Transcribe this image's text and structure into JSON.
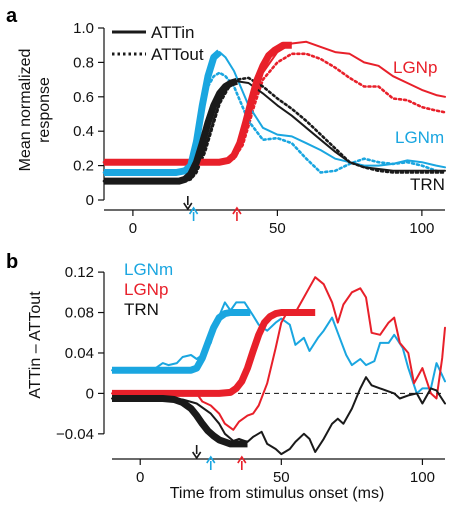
{
  "colors": {
    "LGNp": "#e8202a",
    "LGNm": "#1aa6e0",
    "TRN": "#1a1a1a"
  },
  "chart_data": [
    {
      "panel": "a",
      "type": "line",
      "xlabel": "",
      "ylabel": "Mean normalized response",
      "xlim": [
        -10,
        108
      ],
      "ylim": [
        0,
        1.0
      ],
      "xticks": [
        0,
        50,
        100
      ],
      "yticks": [
        0,
        0.2,
        0.4,
        0.6,
        0.8,
        1.0
      ],
      "ytick_labels": [
        "0",
        "0.2",
        "0.4",
        "0.6",
        "0.8",
        "1.0"
      ],
      "legend": {
        "position": "top-left",
        "entries": [
          "ATTin",
          "ATTout"
        ]
      },
      "series": [
        {
          "name": "LGNp",
          "condition": "ATTin",
          "color": "LGNp",
          "x": [
            -10,
            0,
            10,
            20,
            30,
            35,
            38,
            40,
            42,
            45,
            50,
            55,
            60,
            65,
            70,
            75,
            80,
            85,
            90,
            95,
            100,
            105,
            108
          ],
          "y": [
            0.22,
            0.22,
            0.22,
            0.22,
            0.22,
            0.24,
            0.33,
            0.45,
            0.58,
            0.74,
            0.86,
            0.91,
            0.92,
            0.89,
            0.86,
            0.85,
            0.8,
            0.78,
            0.72,
            0.68,
            0.64,
            0.61,
            0.6
          ]
        },
        {
          "name": "LGNp",
          "condition": "ATTout",
          "color": "LGNp",
          "x": [
            -10,
            0,
            10,
            20,
            30,
            35,
            38,
            40,
            42,
            45,
            50,
            55,
            60,
            65,
            70,
            75,
            80,
            85,
            90,
            95,
            100,
            105,
            108
          ],
          "y": [
            0.22,
            0.22,
            0.22,
            0.22,
            0.22,
            0.24,
            0.32,
            0.43,
            0.55,
            0.7,
            0.8,
            0.85,
            0.85,
            0.82,
            0.77,
            0.71,
            0.66,
            0.66,
            0.59,
            0.58,
            0.54,
            0.52,
            0.51
          ]
        },
        {
          "name": "LGNm",
          "condition": "ATTin",
          "color": "LGNm",
          "x": [
            -10,
            0,
            10,
            15,
            18,
            20,
            22,
            24,
            26,
            28,
            30,
            32,
            35,
            40,
            45,
            50,
            55,
            60,
            65,
            70,
            75,
            80,
            85,
            90,
            95,
            100,
            105,
            108
          ],
          "y": [
            0.16,
            0.16,
            0.16,
            0.16,
            0.17,
            0.22,
            0.4,
            0.6,
            0.74,
            0.82,
            0.86,
            0.83,
            0.75,
            0.55,
            0.42,
            0.38,
            0.37,
            0.33,
            0.29,
            0.24,
            0.22,
            0.2,
            0.2,
            0.21,
            0.23,
            0.22,
            0.2,
            0.19
          ]
        },
        {
          "name": "LGNm",
          "condition": "ATTout",
          "color": "LGNm",
          "x": [
            -10,
            0,
            10,
            15,
            18,
            20,
            22,
            24,
            26,
            28,
            30,
            32,
            35,
            40,
            45,
            50,
            55,
            60,
            65,
            70,
            75,
            80,
            85,
            90,
            95,
            100,
            105,
            108
          ],
          "y": [
            0.16,
            0.16,
            0.16,
            0.16,
            0.17,
            0.21,
            0.36,
            0.54,
            0.66,
            0.72,
            0.74,
            0.72,
            0.66,
            0.46,
            0.35,
            0.36,
            0.33,
            0.24,
            0.16,
            0.17,
            0.21,
            0.24,
            0.22,
            0.21,
            0.22,
            0.2,
            0.17,
            0.16
          ]
        },
        {
          "name": "TRN",
          "condition": "ATTin",
          "color": "TRN",
          "x": [
            -10,
            0,
            10,
            18,
            20,
            22,
            25,
            28,
            30,
            33,
            36,
            40,
            45,
            50,
            55,
            60,
            65,
            70,
            75,
            80,
            85,
            90,
            95,
            100,
            105,
            108
          ],
          "y": [
            0.11,
            0.11,
            0.11,
            0.11,
            0.12,
            0.17,
            0.3,
            0.47,
            0.57,
            0.66,
            0.69,
            0.68,
            0.62,
            0.55,
            0.49,
            0.42,
            0.35,
            0.28,
            0.22,
            0.19,
            0.18,
            0.17,
            0.17,
            0.17,
            0.17,
            0.17
          ]
        },
        {
          "name": "TRN",
          "condition": "ATTout",
          "color": "TRN",
          "x": [
            -10,
            0,
            10,
            18,
            20,
            22,
            25,
            28,
            30,
            33,
            36,
            40,
            45,
            50,
            55,
            60,
            65,
            70,
            75,
            80,
            85,
            90,
            95,
            100,
            105,
            108
          ],
          "y": [
            0.11,
            0.11,
            0.11,
            0.11,
            0.12,
            0.16,
            0.28,
            0.45,
            0.56,
            0.65,
            0.7,
            0.71,
            0.66,
            0.59,
            0.53,
            0.46,
            0.38,
            0.3,
            0.22,
            0.19,
            0.17,
            0.16,
            0.16,
            0.16,
            0.16,
            0.16
          ]
        }
      ],
      "fits": [
        {
          "color": "LGNp",
          "x": [
            -10,
            20,
            30,
            33,
            35,
            37,
            39,
            41,
            43,
            45,
            47,
            49,
            50,
            52,
            55
          ],
          "y": [
            0.22,
            0.22,
            0.22,
            0.23,
            0.26,
            0.33,
            0.45,
            0.58,
            0.7,
            0.78,
            0.84,
            0.87,
            0.88,
            0.9,
            0.9
          ]
        },
        {
          "color": "LGNm",
          "x": [
            -10,
            10,
            15,
            18,
            20,
            22,
            24,
            26,
            28,
            30
          ],
          "y": [
            0.16,
            0.16,
            0.16,
            0.17,
            0.2,
            0.34,
            0.55,
            0.72,
            0.83,
            0.86
          ]
        },
        {
          "color": "TRN",
          "x": [
            -10,
            10,
            16,
            18,
            20,
            22,
            24,
            26,
            28,
            30,
            32,
            34,
            36
          ],
          "y": [
            0.11,
            0.11,
            0.11,
            0.12,
            0.15,
            0.22,
            0.33,
            0.45,
            0.55,
            0.62,
            0.66,
            0.68,
            0.69
          ]
        }
      ],
      "labels": [
        {
          "text": "LGNp",
          "color": "LGNp"
        },
        {
          "text": "LGNm",
          "color": "LGNm"
        },
        {
          "text": "TRN",
          "color": "TRN"
        }
      ],
      "latency_arrows": [
        {
          "color": "TRN",
          "x": 19
        },
        {
          "color": "LGNm",
          "x": 21
        },
        {
          "color": "LGNp",
          "x": 36
        }
      ]
    },
    {
      "panel": "b",
      "type": "line",
      "xlabel": "Time from stimulus onset (ms)",
      "ylabel": "ATTin – ATTout",
      "xlim": [
        -10,
        108
      ],
      "ylim": [
        -0.055,
        0.13
      ],
      "xticks": [
        0,
        50,
        100
      ],
      "yticks": [
        -0.04,
        0,
        0.04,
        0.08,
        0.12
      ],
      "ytick_labels": [
        "−0.04",
        "0",
        "0.04",
        "0.08",
        "0.12"
      ],
      "zero_line": "dashed",
      "legend": {
        "position": "top-left",
        "entries": [
          "LGNm",
          "LGNp",
          "TRN"
        ]
      },
      "series": [
        {
          "name": "LGNm",
          "color": "LGNm",
          "x": [
            -10,
            -5,
            0,
            5,
            8,
            10,
            13,
            15,
            18,
            20,
            22,
            25,
            27,
            30,
            32,
            34,
            37,
            40,
            42,
            45,
            48,
            50,
            53,
            55,
            58,
            60,
            63,
            65,
            68,
            70,
            73,
            75,
            78,
            80,
            83,
            85,
            88,
            90,
            93,
            95,
            98,
            100,
            103,
            105,
            108
          ],
          "y": [
            0.023,
            0.023,
            0.021,
            0.024,
            0.03,
            0.028,
            0.03,
            0.036,
            0.038,
            0.034,
            0.038,
            0.05,
            0.07,
            0.09,
            0.082,
            0.09,
            0.09,
            0.077,
            0.068,
            0.062,
            0.07,
            0.074,
            0.068,
            0.048,
            0.055,
            0.042,
            0.055,
            0.062,
            0.075,
            0.06,
            0.038,
            0.028,
            0.034,
            0.028,
            0.032,
            0.05,
            0.05,
            0.058,
            0.045,
            0.025,
            0.0,
            0.005,
            0.005,
            0.03,
            0.012
          ]
        },
        {
          "name": "LGNp",
          "color": "LGNp",
          "x": [
            -10,
            0,
            10,
            18,
            20,
            22,
            25,
            28,
            30,
            33,
            35,
            38,
            40,
            42,
            45,
            48,
            50,
            52,
            55,
            58,
            60,
            62,
            65,
            68,
            70,
            72,
            75,
            78,
            80,
            82,
            85,
            88,
            90,
            92,
            95,
            97,
            100,
            103,
            105,
            107,
            108
          ],
          "y": [
            0.0,
            0.0,
            0.0,
            0.0,
            0.0,
            -0.008,
            -0.012,
            -0.02,
            -0.03,
            -0.036,
            -0.028,
            -0.022,
            -0.02,
            -0.012,
            0.01,
            0.045,
            0.07,
            0.08,
            0.08,
            0.095,
            0.105,
            0.115,
            0.108,
            0.09,
            0.07,
            0.088,
            0.1,
            0.104,
            0.095,
            0.06,
            0.058,
            0.07,
            0.075,
            0.05,
            0.04,
            0.01,
            0.025,
            0.0,
            -0.005,
            0.035,
            0.065
          ]
        },
        {
          "name": "TRN",
          "color": "TRN",
          "x": [
            -10,
            0,
            10,
            15,
            20,
            25,
            28,
            30,
            33,
            35,
            38,
            40,
            43,
            45,
            48,
            50,
            53,
            55,
            58,
            60,
            62,
            65,
            68,
            70,
            72,
            75,
            78,
            80,
            82,
            85,
            88,
            90,
            92,
            95,
            98,
            100,
            103,
            105,
            108
          ],
          "y": [
            -0.005,
            -0.005,
            -0.005,
            -0.006,
            -0.01,
            -0.02,
            -0.03,
            -0.04,
            -0.047,
            -0.045,
            -0.048,
            -0.043,
            -0.038,
            -0.05,
            -0.055,
            -0.06,
            -0.055,
            -0.048,
            -0.04,
            -0.045,
            -0.058,
            -0.045,
            -0.03,
            -0.025,
            -0.03,
            -0.015,
            0.005,
            0.016,
            0.008,
            0.005,
            0.002,
            0.0,
            -0.005,
            -0.002,
            0.0,
            -0.01,
            0.005,
            0.003,
            -0.01
          ]
        }
      ],
      "fits": [
        {
          "color": "LGNm",
          "x": [
            -10,
            10,
            18,
            20,
            22,
            24,
            26,
            28,
            30,
            32,
            35,
            39
          ],
          "y": [
            0.023,
            0.023,
            0.023,
            0.025,
            0.035,
            0.05,
            0.065,
            0.075,
            0.079,
            0.08,
            0.08,
            0.08
          ]
        },
        {
          "color": "LGNp",
          "x": [
            -10,
            28,
            32,
            34,
            36,
            38,
            40,
            42,
            44,
            46,
            48,
            50,
            55,
            62
          ],
          "y": [
            0.0,
            0.0,
            0.001,
            0.005,
            0.012,
            0.025,
            0.042,
            0.058,
            0.07,
            0.076,
            0.079,
            0.08,
            0.08,
            0.08
          ]
        },
        {
          "color": "TRN",
          "x": [
            -10,
            8,
            12,
            15,
            18,
            20,
            22,
            24,
            26,
            28,
            30,
            32,
            35,
            38
          ],
          "y": [
            -0.005,
            -0.005,
            -0.006,
            -0.009,
            -0.015,
            -0.022,
            -0.03,
            -0.037,
            -0.042,
            -0.046,
            -0.048,
            -0.05,
            -0.05,
            -0.05
          ]
        }
      ],
      "latency_arrows": [
        {
          "color": "TRN",
          "x": 20
        },
        {
          "color": "LGNm",
          "x": 25
        },
        {
          "color": "LGNp",
          "x": 36
        }
      ]
    }
  ],
  "panel_a": {
    "letter": "a",
    "ylabel_line1": "Mean normalized",
    "ylabel_line2": "response",
    "legend_solid": "ATTin",
    "legend_dotted": "ATTout",
    "label_p": "LGNp",
    "label_m": "LGNm",
    "label_trn": "TRN"
  },
  "panel_b": {
    "letter": "b",
    "ylabel": "ATTin – ATTout",
    "xlabel": "Time from stimulus onset (ms)",
    "legend_m": "LGNm",
    "legend_p": "LGNp",
    "legend_trn": "TRN"
  }
}
